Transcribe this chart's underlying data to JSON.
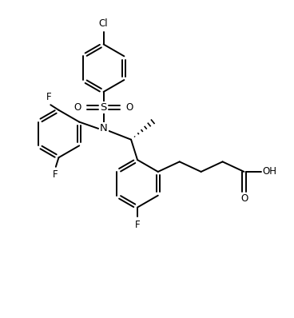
{
  "bg_color": "#ffffff",
  "line_color": "#000000",
  "line_width": 1.4,
  "font_size": 8.5,
  "fig_width": 3.68,
  "fig_height": 3.98,
  "dpi": 100,
  "xlim": [
    0,
    10
  ],
  "ylim": [
    0,
    10.82
  ]
}
